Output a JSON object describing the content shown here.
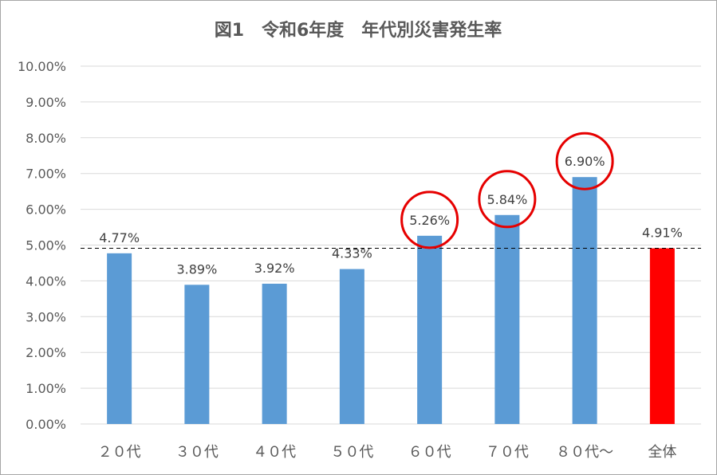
{
  "chart_data": {
    "type": "bar",
    "title": "図1　令和6年度　年代別災害発生率",
    "categories": [
      "２０代",
      "３０代",
      "４０代",
      "５０代",
      "６０代",
      "７０代",
      "８０代～",
      "全体"
    ],
    "values": [
      4.77,
      3.89,
      3.92,
      4.33,
      5.26,
      5.84,
      6.9,
      4.91
    ],
    "value_labels": [
      "4.77%",
      "3.89%",
      "3.92%",
      "4.33%",
      "5.26%",
      "5.84%",
      "6.90%",
      "4.91%"
    ],
    "y_ticks": [
      "0.00%",
      "1.00%",
      "2.00%",
      "3.00%",
      "4.00%",
      "5.00%",
      "6.00%",
      "7.00%",
      "8.00%",
      "9.00%",
      "10.00%"
    ],
    "ylim": [
      0,
      10
    ],
    "grid": true,
    "legend": "none",
    "reference_line": {
      "value": 4.91,
      "style": "dashed"
    },
    "highlighted_categories": [
      "６０代",
      "７０代",
      "８０代～"
    ],
    "colors": {
      "bar": "#5b9bd5",
      "total_bar": "#ff0000",
      "highlight_circle": "#e60000",
      "reference_line": "#000000"
    }
  }
}
